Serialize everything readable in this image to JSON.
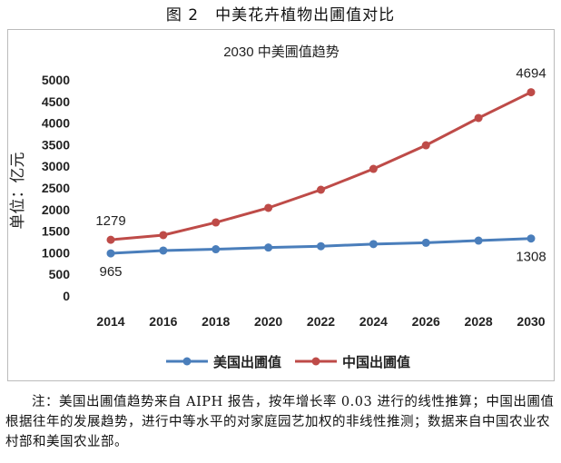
{
  "figure_title": "图 2　中美花卉植物出圃值对比",
  "note": "注：美国出圃值趋势来自 AIPH 报告，按年增长率 0.03 进行的线性推算；中国出圃值根据往年的发展趋势，进行中等水平的对家庭园艺加权的非线性推测；数据来自中国农业农村部和美国农业部。",
  "chart_data": {
    "type": "line",
    "title": "2030 中美圃值趋势",
    "ylabel": "单位：亿元",
    "xlabel": "",
    "categories": [
      "2014",
      "2016",
      "2018",
      "2020",
      "2022",
      "2024",
      "2026",
      "2028",
      "2030"
    ],
    "yticks": [
      "0",
      "500",
      "1000",
      "1500",
      "2000",
      "2500",
      "3000",
      "3500",
      "4000",
      "4500",
      "5000"
    ],
    "ylim": [
      0,
      5000
    ],
    "grid": false,
    "legend_position": "bottom",
    "series": [
      {
        "name": "美国出圃值",
        "color": "#4a7ebb",
        "values": [
          965,
          1030,
          1060,
          1100,
          1130,
          1180,
          1210,
          1260,
          1308
        ],
        "labels": {
          "0": "965",
          "8": "1308"
        }
      },
      {
        "name": "中国出圃值",
        "color": "#be4b48",
        "values": [
          1279,
          1387,
          1680,
          2017,
          2437,
          2920,
          3466,
          4097,
          4694
        ],
        "labels": {
          "0": "1279",
          "8": "4694"
        }
      }
    ]
  }
}
